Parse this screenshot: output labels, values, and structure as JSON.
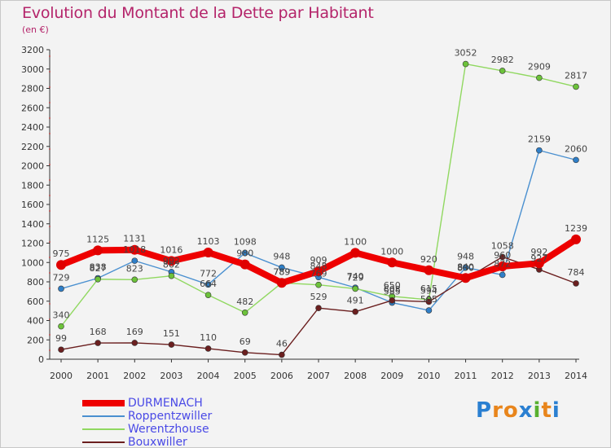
{
  "title": "Evolution du Montant de la Dette par Habitant",
  "subtitle": "(en €)",
  "logo": {
    "text": "Proxiti",
    "letter_colors": [
      "#2a7fd1",
      "#e8851c",
      "#e8851c",
      "#2a7fd1",
      "#58b030",
      "#e8851c",
      "#2a7fd1"
    ]
  },
  "chart_data": {
    "type": "line",
    "x": [
      "2000",
      "2001",
      "2002",
      "2003",
      "2004",
      "2005",
      "2006",
      "2007",
      "2008",
      "2009",
      "2010",
      "2011",
      "2012",
      "2013",
      "2014"
    ],
    "ylim": [
      0,
      3200
    ],
    "yticks": [
      0,
      200,
      400,
      600,
      800,
      1000,
      1200,
      1400,
      1600,
      1800,
      2000,
      2200,
      2400,
      2600,
      2800,
      3000,
      3200
    ],
    "grid": false,
    "legend_position": "bottom-left",
    "series": [
      {
        "name": "Roppentzwiller",
        "color": "#4a90d0",
        "marker": "#2f7fc8",
        "values": [
          729,
          838,
          1018,
          902,
          772,
          1098,
          948,
          848,
          740,
          585,
          505,
          948,
          872,
          2159,
          2060
        ],
        "labels": [
          "729",
          "838",
          "1018",
          "902",
          "772",
          "1098",
          "948",
          "848",
          "740",
          "585",
          "505",
          "948",
          "872",
          "2159",
          "2060"
        ]
      },
      {
        "name": "Werentzhouse",
        "color": "#90d860",
        "marker": "#6cc23a",
        "values": [
          340,
          827,
          823,
          862,
          664,
          482,
          789,
          769,
          729,
          650,
          615,
          3052,
          2982,
          2909,
          2817
        ],
        "labels": [
          "340",
          "827",
          "823",
          "862",
          "664",
          "482",
          "789",
          "769",
          "729",
          "650",
          "615",
          "3052",
          "2982",
          "2909",
          "2817"
        ]
      },
      {
        "name": "Bouxwiller",
        "color": "#6b1f1f",
        "marker": "#6b1f1f",
        "values": [
          99,
          168,
          169,
          151,
          110,
          69,
          46,
          529,
          491,
          608,
          594,
          830,
          1058,
          927,
          784
        ],
        "labels": [
          "99",
          "168",
          "169",
          "151",
          "110",
          "69",
          "46",
          "529",
          "491",
          "608",
          "594",
          "830",
          "1058",
          "927",
          "784"
        ]
      },
      {
        "name": "DURMENACH",
        "color": "#ee0000",
        "marker": "#e00000",
        "values": [
          975,
          1125,
          1131,
          1016,
          1103,
          980,
          789,
          909,
          1100,
          1000,
          920,
          840,
          960,
          992,
          1239
        ],
        "labels": [
          "975",
          "1125",
          "1131",
          "1016",
          "1103",
          "980",
          "789",
          "909",
          "1100",
          "1000",
          "920",
          "840",
          "960",
          "992",
          "1239"
        ]
      }
    ],
    "legend": [
      {
        "name": "DURMENACH",
        "color": "#ee0000",
        "thickness": 8
      },
      {
        "name": "Roppentzwiller",
        "color": "#4a90d0",
        "thickness": 2
      },
      {
        "name": "Werentzhouse",
        "color": "#90d860",
        "thickness": 2
      },
      {
        "name": "Bouxwiller",
        "color": "#6b1f1f",
        "thickness": 2
      }
    ]
  }
}
